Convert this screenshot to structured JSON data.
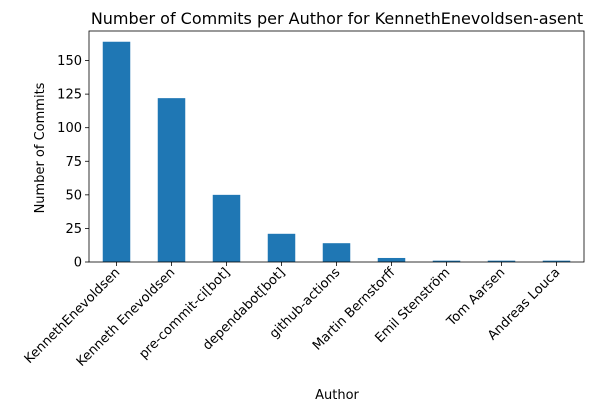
{
  "chart_data": {
    "type": "bar",
    "title": "Number of Commits per Author for KennethEnevoldsen-asent",
    "xlabel": "Author",
    "ylabel": "Number of Commits",
    "categories": [
      "KennethEnevoldsen",
      "Kenneth Enevoldsen",
      "pre-commit-ci[bot]",
      "dependabot[bot]",
      "github-actions",
      "Martin Bernstorff",
      "Emil Stenström",
      "Tom Aarsen",
      "Andreas Louca"
    ],
    "values": [
      164,
      122,
      50,
      21,
      14,
      3,
      1,
      1,
      1
    ],
    "ylim": [
      0,
      172
    ],
    "yticks": [
      0,
      25,
      50,
      75,
      100,
      125,
      150
    ],
    "grid": false,
    "bar_color": "#1f77b4"
  }
}
